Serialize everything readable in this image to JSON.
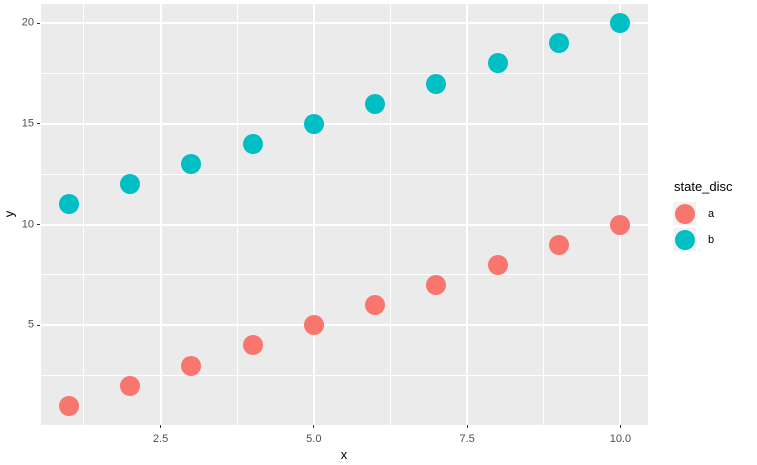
{
  "chart_data": {
    "type": "scatter",
    "title": "",
    "xlabel": "x",
    "ylabel": "y",
    "xlim": [
      0.55,
      10.45
    ],
    "ylim": [
      0.05,
      20.95
    ],
    "grid": true,
    "panel_bg": "#EBEBEB",
    "grid_color": "#FFFFFF",
    "tick_color": "#333333",
    "tick_label_color": "#4D4D4D",
    "x_ticks": {
      "values": [
        2.5,
        5.0,
        7.5,
        10.0
      ],
      "labels": [
        "2.5",
        "5.0",
        "7.5",
        "10.0"
      ]
    },
    "y_ticks": {
      "values": [
        5,
        10,
        15,
        20
      ],
      "labels": [
        "5",
        "10",
        "15",
        "20"
      ]
    },
    "x_minor": [
      1.25,
      3.75,
      6.25,
      8.75
    ],
    "y_minor": [
      2.5,
      7.5,
      12.5,
      17.5
    ],
    "legend": {
      "title": "state_disc",
      "position": "right"
    },
    "series": [
      {
        "name": "a",
        "color": "#F8766D",
        "x": [
          1,
          2,
          3,
          4,
          5,
          6,
          7,
          8,
          9,
          10
        ],
        "y": [
          1,
          2,
          3,
          4,
          5,
          6,
          7,
          8,
          9,
          10
        ]
      },
      {
        "name": "b",
        "color": "#00BFC4",
        "x": [
          1,
          2,
          3,
          4,
          5,
          6,
          7,
          8,
          9,
          10
        ],
        "y": [
          11,
          12,
          13,
          14,
          15,
          16,
          17,
          18,
          19,
          20
        ]
      }
    ]
  }
}
